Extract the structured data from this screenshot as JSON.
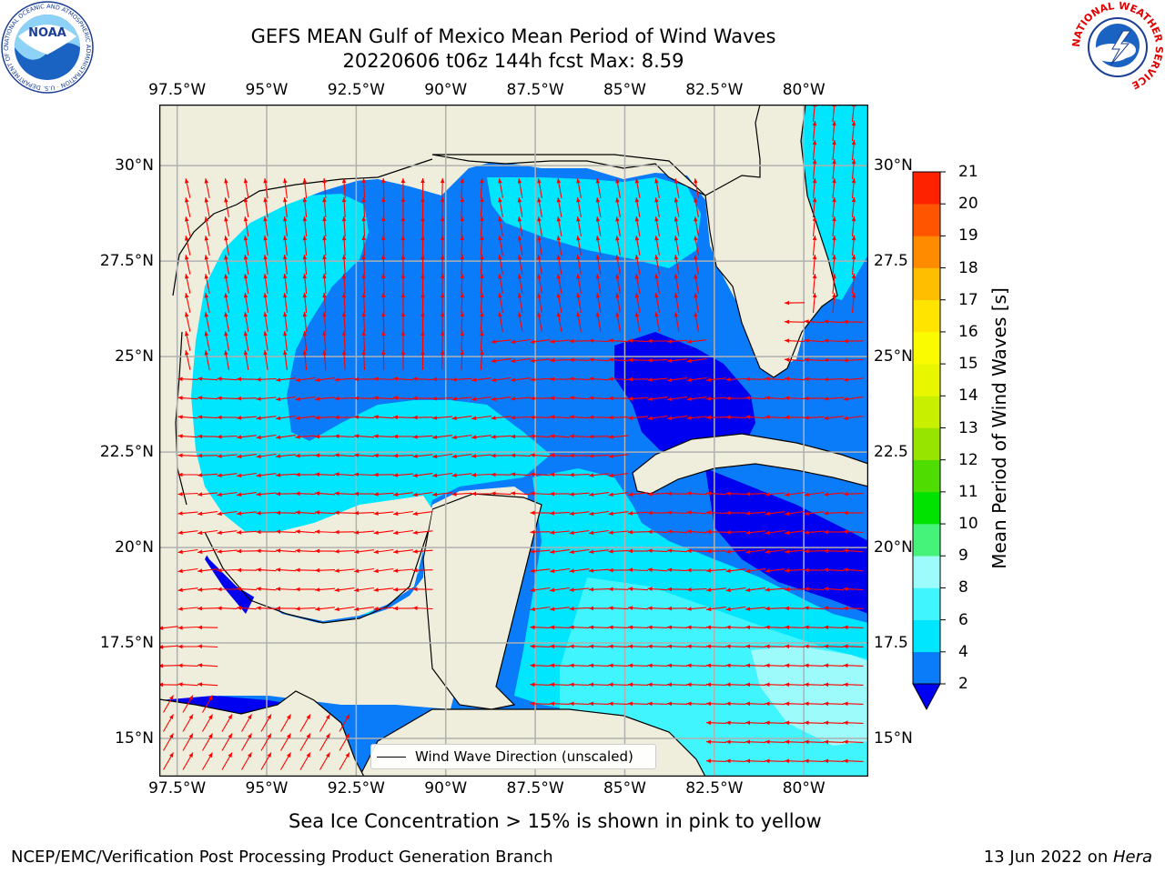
{
  "header": {
    "title_line1": "GEFS MEAN Gulf of Mexico Mean Period of Wind Waves",
    "title_line2": "20220606 t06z 144h fcst   Max: 8.59",
    "noaa_logo_text": "NOAA",
    "noaa_ring_text": "NATIONAL OCEANIC AND ATMOSPHERIC ADMINISTRATION · U.S. DEPARTMENT OF COMMERCE ·",
    "nws_ring_text": "NATIONAL WEATHER SERVICE"
  },
  "map": {
    "lon_labels": [
      "97.5°W",
      "95°W",
      "92.5°W",
      "90°W",
      "87.5°W",
      "85°W",
      "82.5°W",
      "80°W"
    ],
    "lat_labels": [
      "30°N",
      "27.5°N",
      "25°N",
      "22.5°N",
      "20°N",
      "17.5°N",
      "15°N"
    ],
    "lat_labels_right": [
      "30°N",
      "27.5",
      "25°N",
      "22.5",
      "20°N",
      "17.5",
      "15°N"
    ],
    "lon_range": [
      -98,
      -78.2
    ],
    "lat_range": [
      14,
      31.6
    ],
    "legend_label": "Wind Wave Direction (unscaled)",
    "colors": {
      "land": "#efeedc",
      "arrows": "#ff0000",
      "grid": "#b0b0b0"
    }
  },
  "colorbar": {
    "label": "Mean Period of Wind Waves [s]",
    "ticks": [
      "2",
      "4",
      "6",
      "8",
      "9",
      "10",
      "11",
      "12",
      "13",
      "14",
      "15",
      "16",
      "17",
      "18",
      "19",
      "20",
      "21"
    ],
    "level_colors": [
      "#0a7bf9",
      "#00e6ff",
      "#41f5ff",
      "#9dfbfb",
      "#46f37a",
      "#00e300",
      "#4fdc00",
      "#97e400",
      "#c8ef00",
      "#e8f600",
      "#fbfb00",
      "#ffe400",
      "#ffbf00",
      "#ff8c00",
      "#ff5400",
      "#ff2200"
    ],
    "under_color": "#0000f0"
  },
  "note": "Sea Ice Concentration > 15% is shown in pink to yellow",
  "footer": {
    "left": "NCEP/EMC/Verification Post Processing Product Generation Branch",
    "right_date": "13 Jun 2022 on ",
    "right_machine": "Hera"
  }
}
